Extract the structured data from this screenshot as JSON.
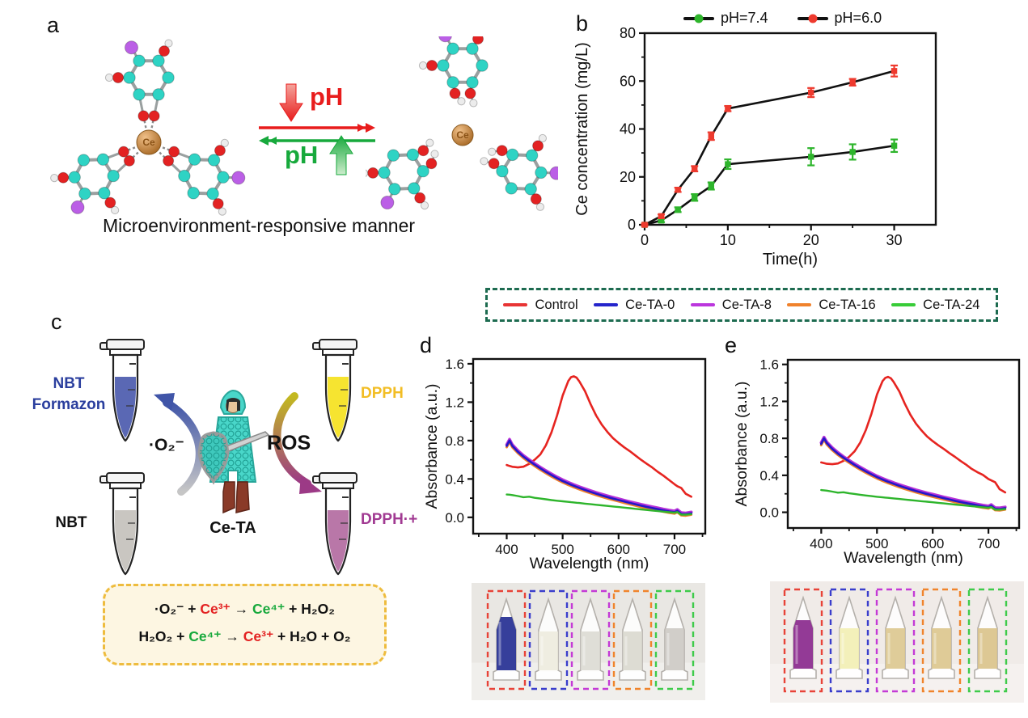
{
  "figure": {
    "panels": {
      "a": {
        "label": "a",
        "caption": "Microenvironment-responsive manner",
        "forward_arrow_label": "pH",
        "reverse_arrow_label": "pH",
        "ce_symbol": "Ce",
        "atom_colors": {
          "carbon": "#2ed3c4",
          "oxygen": "#e32222",
          "hydrogen": "#ececec",
          "halogen": "#bb5fe6",
          "cerium": "#cd8a46",
          "bond": "#9aa0a0"
        },
        "arrow_colors": {
          "forward": "#e81c1c",
          "reverse": "#17a93c"
        }
      },
      "b": {
        "label": "b"
      },
      "c": {
        "label": "c",
        "tube_labels": {
          "nbt_formazon_line1": "NBT",
          "nbt_formazon_line2": "Formazon",
          "nbt": "NBT",
          "dpph": "DPPH",
          "dpph_radical": "DPPH·+"
        },
        "label_colors": {
          "nbt_formazon": "#2b3f9e",
          "nbt": "#111111",
          "dpph": "#f2bd24",
          "dpph_radical": "#a13a92"
        },
        "tube_liquid_colors": {
          "nbt_formazon": "#5a68b4",
          "nbt": "#c9c6c1",
          "dpph": "#f6e430",
          "dpph_radical": "#b977a8"
        },
        "superoxide_label": "·O₂⁻",
        "ros_label": "ROS",
        "knight_label": "Ce-TA",
        "arrow_gradients": {
          "o2_top": "#4055a8",
          "o2_bottom": "#c6c6c6",
          "ros_top": "#c3b920",
          "ros_bottom": "#9c3a86"
        },
        "equations": {
          "line1": {
            "p1": "·O₂⁻ + ",
            "p2": "Ce³⁺",
            "p3": " → ",
            "p4": "Ce⁴⁺",
            "p5": " + H₂O₂"
          },
          "line2": {
            "p1": "H₂O₂ + ",
            "p2": "Ce⁴⁺",
            "p3": " → ",
            "p4": "Ce³⁺",
            "p5": " + H₂O + O₂"
          },
          "highlight_red": "#e32222",
          "highlight_green": "#17a93c",
          "box_border": "#eebc3e",
          "box_bg": "#fdf6e2"
        }
      },
      "d": {
        "label": "d"
      },
      "e": {
        "label": "e"
      }
    }
  },
  "shared_legend": {
    "border_color": "#1d6b50",
    "entries": [
      {
        "label": "Control",
        "color": "#e83434"
      },
      {
        "label": "Ce-TA-0",
        "color": "#2525cc"
      },
      {
        "label": "Ce-TA-8",
        "color": "#bb36dd"
      },
      {
        "label": "Ce-TA-16",
        "color": "#f0822c"
      },
      {
        "label": "Ce-TA-24",
        "color": "#38cc38"
      }
    ]
  },
  "photos": {
    "d": {
      "background": "#e9e7e3",
      "box_colors": [
        "#e84338",
        "#3a3ecc",
        "#c43ad6",
        "#f0842c",
        "#3ecb4a"
      ],
      "tubes": [
        {
          "liquid": "#2b3596",
          "level": 28,
          "opacity": 0.95
        },
        {
          "liquid": "#eceadc",
          "level": 46,
          "opacity": 0.85
        },
        {
          "liquid": "#d9d8d0",
          "level": 46,
          "opacity": 0.85
        },
        {
          "liquid": "#d7d6cb",
          "level": 46,
          "opacity": 0.85
        },
        {
          "liquid": "#c9c5bf",
          "level": 42,
          "opacity": 0.85
        }
      ]
    },
    "e": {
      "background": "#f0ebe8",
      "box_colors": [
        "#e84338",
        "#3a3ecc",
        "#c43ad6",
        "#f0842c",
        "#3ecb4a"
      ],
      "tubes": [
        {
          "liquid": "#8d2f90",
          "level": 34,
          "opacity": 0.95
        },
        {
          "liquid": "#f2eeb2",
          "level": 44,
          "opacity": 0.9
        },
        {
          "liquid": "#dcc68e",
          "level": 44,
          "opacity": 0.9
        },
        {
          "liquid": "#dbc58c",
          "level": 44,
          "opacity": 0.9
        },
        {
          "liquid": "#d9c288",
          "level": 44,
          "opacity": 0.9
        }
      ]
    }
  },
  "chart_data": [
    {
      "id": "chart-b",
      "type": "line",
      "xlabel": "Time(h)",
      "ylabel": "Ce concentration (mg/L)",
      "xlim": [
        0,
        35
      ],
      "ylim": [
        0,
        80
      ],
      "xticks": [
        0,
        10,
        20,
        30
      ],
      "xminor": [
        5,
        15,
        25
      ],
      "yticks": [
        0,
        20,
        40,
        60,
        80
      ],
      "yminor": [
        10,
        30,
        50,
        70
      ],
      "x": [
        0,
        2,
        4,
        6,
        8,
        10,
        20,
        25,
        30
      ],
      "connector_color": "#111111",
      "series": [
        {
          "name": "pH=7.4",
          "color": "#2eb52c",
          "values": [
            0,
            1.8,
            6.3,
            11.4,
            16.2,
            25.3,
            28.4,
            30.4,
            33.0
          ],
          "errors": [
            0.4,
            0.7,
            1.0,
            1.4,
            1.5,
            2.0,
            3.6,
            3.2,
            2.6
          ]
        },
        {
          "name": "pH=6.0",
          "color": "#ee3a2e",
          "values": [
            0,
            3.6,
            14.6,
            23.4,
            37.0,
            48.5,
            55.2,
            59.5,
            64.2
          ],
          "errors": [
            0.4,
            0.7,
            0.9,
            1.1,
            1.6,
            1.1,
            1.9,
            1.4,
            2.3
          ]
        }
      ]
    },
    {
      "id": "chart-d",
      "type": "line",
      "xlabel": "Wavelength (nm)",
      "ylabel": "Absorbance (a.u.)",
      "xlim": [
        340,
        755
      ],
      "ylim": [
        -0.17,
        1.65
      ],
      "xticks": [
        400,
        500,
        600,
        700
      ],
      "xminor": [
        350,
        450,
        550,
        650,
        750
      ],
      "yticks": [
        0.0,
        0.4,
        0.8,
        1.2,
        1.6
      ],
      "yminor": [
        0.2,
        0.6,
        1.0,
        1.4
      ],
      "ydec": 1,
      "x": [
        400,
        405,
        410,
        420,
        430,
        440,
        450,
        460,
        470,
        480,
        490,
        500,
        510,
        515,
        520,
        525,
        530,
        540,
        550,
        560,
        570,
        580,
        590,
        600,
        610,
        620,
        630,
        640,
        650,
        660,
        670,
        680,
        690,
        700,
        705,
        712,
        720,
        730
      ],
      "series": [
        {
          "name": "Control",
          "color": "#e62420",
          "width": 2.6,
          "y": [
            0.545,
            0.535,
            0.527,
            0.52,
            0.528,
            0.557,
            0.6,
            0.655,
            0.75,
            0.885,
            1.06,
            1.27,
            1.42,
            1.46,
            1.47,
            1.455,
            1.415,
            1.315,
            1.18,
            1.06,
            0.965,
            0.89,
            0.825,
            0.775,
            0.73,
            0.69,
            0.645,
            0.6,
            0.56,
            0.52,
            0.475,
            0.435,
            0.39,
            0.345,
            0.325,
            0.305,
            0.245,
            0.215
          ]
        },
        {
          "name": "Ce-TA-8",
          "color": "#b832d8",
          "width": 3.6,
          "base": "Ce-TA-0",
          "offset": 0.013
        },
        {
          "name": "Ce-TA-16",
          "color": "#f0822c",
          "width": 3.0,
          "base": "Ce-TA-0",
          "offset": -0.014
        },
        {
          "name": "Ce-TA-0",
          "color": "#2517c8",
          "width": 2.7,
          "y": [
            0.745,
            0.8,
            0.745,
            0.683,
            0.632,
            0.588,
            0.548,
            0.51,
            0.474,
            0.44,
            0.408,
            0.378,
            0.352,
            0.34,
            0.328,
            0.317,
            0.306,
            0.285,
            0.265,
            0.246,
            0.228,
            0.211,
            0.195,
            0.18,
            0.165,
            0.15,
            0.136,
            0.122,
            0.109,
            0.097,
            0.085,
            0.073,
            0.062,
            0.053,
            0.068,
            0.035,
            0.032,
            0.042
          ]
        },
        {
          "name": "Ce-TA-24",
          "color": "#2eb52c",
          "width": 2.4,
          "y": [
            0.238,
            0.236,
            0.232,
            0.222,
            0.21,
            0.215,
            0.203,
            0.196,
            0.188,
            0.18,
            0.173,
            0.167,
            0.161,
            0.158,
            0.155,
            0.152,
            0.149,
            0.143,
            0.137,
            0.131,
            0.125,
            0.119,
            0.113,
            0.107,
            0.101,
            0.095,
            0.089,
            0.083,
            0.077,
            0.071,
            0.065,
            0.059,
            0.053,
            0.048,
            0.055,
            0.028,
            0.028,
            0.033
          ]
        }
      ]
    },
    {
      "id": "chart-e",
      "type": "line",
      "xlabel": "Wavelength (nm)",
      "ylabel": "Absorbance (a.u.)",
      "xlim": [
        340,
        755
      ],
      "ylim": [
        -0.17,
        1.65
      ],
      "xticks": [
        400,
        500,
        600,
        700
      ],
      "xminor": [
        350,
        450,
        550,
        650,
        750
      ],
      "yticks": [
        0.0,
        0.4,
        0.8,
        1.2,
        1.6
      ],
      "yminor": [
        0.2,
        0.6,
        1.0,
        1.4
      ],
      "ydec": 1,
      "x": [
        400,
        405,
        410,
        420,
        430,
        440,
        450,
        460,
        470,
        480,
        490,
        500,
        510,
        515,
        520,
        525,
        530,
        540,
        550,
        560,
        570,
        580,
        590,
        600,
        610,
        620,
        630,
        640,
        650,
        660,
        670,
        680,
        690,
        700,
        705,
        712,
        720,
        730
      ],
      "series": [
        {
          "name": "Control",
          "color": "#e62420",
          "width": 2.6,
          "y": [
            0.54,
            0.532,
            0.525,
            0.52,
            0.528,
            0.557,
            0.6,
            0.66,
            0.755,
            0.89,
            1.065,
            1.275,
            1.42,
            1.455,
            1.465,
            1.45,
            1.41,
            1.31,
            1.175,
            1.055,
            0.96,
            0.885,
            0.82,
            0.77,
            0.725,
            0.685,
            0.64,
            0.6,
            0.555,
            0.515,
            0.47,
            0.435,
            0.405,
            0.36,
            0.345,
            0.325,
            0.25,
            0.215
          ]
        },
        {
          "name": "Ce-TA-8",
          "color": "#b832d8",
          "width": 3.6,
          "base": "Ce-TA-0",
          "offset": 0.013
        },
        {
          "name": "Ce-TA-16",
          "color": "#f0822c",
          "width": 3.0,
          "base": "Ce-TA-0",
          "offset": -0.014
        },
        {
          "name": "Ce-TA-0",
          "color": "#2517c8",
          "width": 2.7,
          "y": [
            0.74,
            0.8,
            0.748,
            0.685,
            0.634,
            0.59,
            0.55,
            0.512,
            0.476,
            0.442,
            0.41,
            0.38,
            0.354,
            0.342,
            0.33,
            0.319,
            0.308,
            0.287,
            0.267,
            0.248,
            0.23,
            0.213,
            0.197,
            0.182,
            0.167,
            0.152,
            0.138,
            0.124,
            0.111,
            0.099,
            0.087,
            0.075,
            0.064,
            0.055,
            0.07,
            0.037,
            0.034,
            0.044
          ]
        },
        {
          "name": "Ce-TA-24",
          "color": "#2eb52c",
          "width": 2.4,
          "y": [
            0.24,
            0.238,
            0.234,
            0.224,
            0.212,
            0.217,
            0.205,
            0.198,
            0.19,
            0.182,
            0.175,
            0.168,
            0.162,
            0.159,
            0.156,
            0.153,
            0.15,
            0.144,
            0.138,
            0.132,
            0.126,
            0.12,
            0.114,
            0.108,
            0.102,
            0.096,
            0.09,
            0.084,
            0.078,
            0.072,
            0.066,
            0.06,
            0.054,
            0.049,
            0.056,
            0.029,
            0.029,
            0.034
          ]
        }
      ]
    }
  ]
}
